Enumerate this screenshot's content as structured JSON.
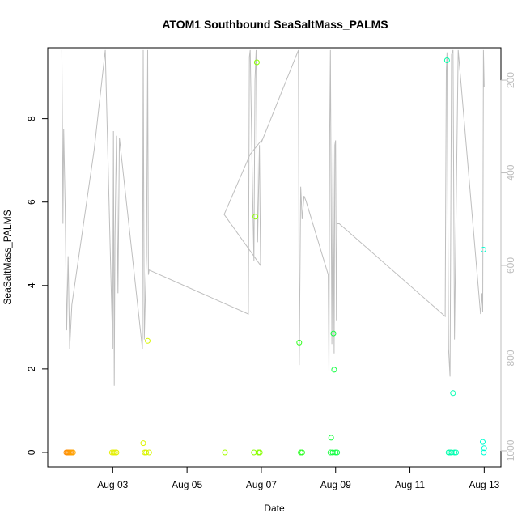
{
  "chart_data": {
    "type": "scatter",
    "title": "ATOM1 Southbound SeaSaltMass_PALMS",
    "xlabel": "Date",
    "ylabel": "SeaSaltMass_PALMS",
    "x_ticks": [
      "Aug 03",
      "Aug 05",
      "Aug 07",
      "Aug 09",
      "Aug 11",
      "Aug 13"
    ],
    "x_tick_days": [
      3,
      5,
      7,
      9,
      11,
      13
    ],
    "xlim_days": [
      1.25,
      13.45
    ],
    "ylim": [
      -0.35,
      9.7
    ],
    "y_ticks": [
      0,
      2,
      4,
      6,
      8
    ],
    "right_axis": {
      "label": "",
      "ticks": [
        200,
        400,
        600,
        800,
        1000
      ],
      "ylim": [
        130,
        1035
      ],
      "color": "#bebebe"
    },
    "grid": false,
    "colors": {
      "line": "#bebebe",
      "axis": "#000000",
      "right_axis": "#bebebe"
    },
    "points": [
      {
        "x": 1.75,
        "y": 0.0,
        "color": "#FF8C00"
      },
      {
        "x": 1.78,
        "y": 0.0,
        "color": "#FF8C00"
      },
      {
        "x": 1.81,
        "y": 0.0,
        "color": "#FF9000"
      },
      {
        "x": 1.84,
        "y": 0.0,
        "color": "#FF9500"
      },
      {
        "x": 1.87,
        "y": 0.0,
        "color": "#FF9A00"
      },
      {
        "x": 1.9,
        "y": 0.0,
        "color": "#FFA000"
      },
      {
        "x": 1.93,
        "y": 0.0,
        "color": "#FFA500"
      },
      {
        "x": 2.98,
        "y": 0.0,
        "color": "#E6EE00"
      },
      {
        "x": 3.02,
        "y": 0.0,
        "color": "#E6EE00"
      },
      {
        "x": 3.06,
        "y": 0.0,
        "color": "#E4F000"
      },
      {
        "x": 3.1,
        "y": 0.0,
        "color": "#E2F000"
      },
      {
        "x": 3.82,
        "y": 0.22,
        "color": "#DDF400"
      },
      {
        "x": 3.86,
        "y": 0.0,
        "color": "#DDF400"
      },
      {
        "x": 3.9,
        "y": 0.0,
        "color": "#DAF500"
      },
      {
        "x": 3.94,
        "y": 2.67,
        "color": "#D8F600"
      },
      {
        "x": 3.98,
        "y": 0.0,
        "color": "#D6F700"
      },
      {
        "x": 6.02,
        "y": 0.0,
        "color": "#A6FF00"
      },
      {
        "x": 6.8,
        "y": 0.0,
        "color": "#8CFF00"
      },
      {
        "x": 6.84,
        "y": 5.65,
        "color": "#8CFF00"
      },
      {
        "x": 6.88,
        "y": 9.35,
        "color": "#8AFF00"
      },
      {
        "x": 6.92,
        "y": 0.0,
        "color": "#88FF00"
      },
      {
        "x": 6.96,
        "y": 0.0,
        "color": "#86FF00"
      },
      {
        "x": 8.02,
        "y": 2.63,
        "color": "#33FF22"
      },
      {
        "x": 8.06,
        "y": 0.0,
        "color": "#30FF25"
      },
      {
        "x": 8.1,
        "y": 0.0,
        "color": "#2EFF28"
      },
      {
        "x": 8.86,
        "y": 0.0,
        "color": "#1AFF40"
      },
      {
        "x": 8.88,
        "y": 0.35,
        "color": "#1AFF40"
      },
      {
        "x": 8.92,
        "y": 0.0,
        "color": "#18FF42"
      },
      {
        "x": 8.94,
        "y": 2.85,
        "color": "#18FF42"
      },
      {
        "x": 8.96,
        "y": 1.98,
        "color": "#16FF44"
      },
      {
        "x": 9.0,
        "y": 0.0,
        "color": "#15FF46"
      },
      {
        "x": 9.04,
        "y": 0.0,
        "color": "#14FF48"
      },
      {
        "x": 12.0,
        "y": 9.4,
        "color": "#00FFA8"
      },
      {
        "x": 12.04,
        "y": 0.0,
        "color": "#00FFAA"
      },
      {
        "x": 12.08,
        "y": 0.0,
        "color": "#00FFAC"
      },
      {
        "x": 12.12,
        "y": 0.0,
        "color": "#00FFAE"
      },
      {
        "x": 12.16,
        "y": 1.42,
        "color": "#00FFB0"
      },
      {
        "x": 12.2,
        "y": 0.0,
        "color": "#00FFB2"
      },
      {
        "x": 12.24,
        "y": 0.0,
        "color": "#00FFB4"
      },
      {
        "x": 12.96,
        "y": 0.25,
        "color": "#00FFD0"
      },
      {
        "x": 12.98,
        "y": 4.86,
        "color": "#00FFD2"
      },
      {
        "x": 13.0,
        "y": 0.1,
        "color": "#00FFD4"
      },
      {
        "x": 12.99,
        "y": 0.0,
        "color": "#00FFD3"
      }
    ],
    "line_series": {
      "name": "",
      "axis": "right",
      "points": [
        [
          1.63,
          135
        ],
        [
          1.65,
          360
        ],
        [
          1.66,
          510
        ],
        [
          1.68,
          305
        ],
        [
          1.72,
          480
        ],
        [
          1.76,
          740
        ],
        [
          1.8,
          580
        ],
        [
          1.84,
          780
        ],
        [
          1.9,
          685
        ],
        [
          2.5,
          350
        ],
        [
          2.8,
          135
        ],
        [
          3.0,
          780
        ],
        [
          3.02,
          310
        ],
        [
          3.04,
          860
        ],
        [
          3.06,
          540
        ],
        [
          3.1,
          320
        ],
        [
          3.14,
          660
        ],
        [
          3.18,
          325
        ],
        [
          3.8,
          780
        ],
        [
          3.82,
          135
        ],
        [
          3.85,
          760
        ],
        [
          3.88,
          660
        ],
        [
          3.91,
          580
        ],
        [
          3.94,
          135
        ],
        [
          3.96,
          620
        ],
        [
          3.98,
          610
        ],
        [
          6.65,
          705
        ],
        [
          6.68,
          150
        ],
        [
          6.7,
          135
        ],
        [
          6.72,
          230
        ],
        [
          6.75,
          380
        ],
        [
          6.8,
          590
        ],
        [
          6.83,
          200
        ],
        [
          6.86,
          135
        ],
        [
          6.9,
          550
        ],
        [
          6.95,
          340
        ],
        [
          6.98,
          600
        ],
        [
          6.0,
          490
        ],
        [
          6.7,
          360
        ],
        [
          7.0,
          330
        ],
        [
          7.0,
          335
        ],
        [
          8.0,
          135
        ],
        [
          8.02,
          815
        ],
        [
          8.06,
          430
        ],
        [
          8.1,
          500
        ],
        [
          8.15,
          450
        ],
        [
          8.2,
          460
        ],
        [
          8.8,
          620
        ],
        [
          8.82,
          830
        ],
        [
          8.84,
          320
        ],
        [
          8.86,
          135
        ],
        [
          8.9,
          770
        ],
        [
          8.93,
          330
        ],
        [
          8.96,
          790
        ],
        [
          8.98,
          340
        ],
        [
          9.0,
          330
        ],
        [
          9.02,
          720
        ],
        [
          9.04,
          510
        ],
        [
          9.1,
          510
        ],
        [
          11.95,
          710
        ],
        [
          11.98,
          180
        ],
        [
          12.0,
          140
        ],
        [
          12.04,
          780
        ],
        [
          12.08,
          840
        ],
        [
          12.12,
          145
        ],
        [
          12.16,
          135
        ],
        [
          12.2,
          760
        ],
        [
          12.3,
          135
        ],
        [
          12.9,
          705
        ],
        [
          12.94,
          660
        ],
        [
          12.96,
          700
        ],
        [
          12.98,
          135
        ],
        [
          13.0,
          215
        ]
      ]
    }
  }
}
